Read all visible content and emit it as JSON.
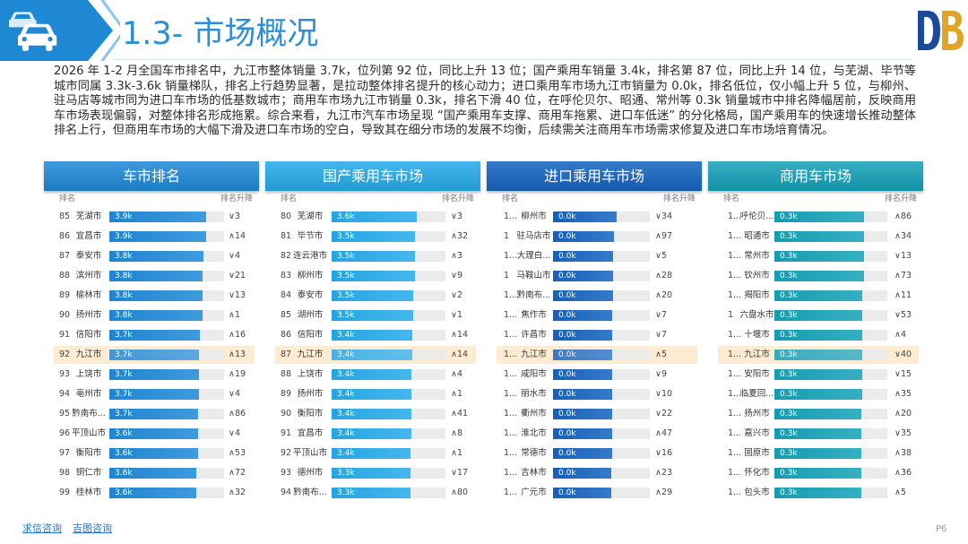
{
  "header": {
    "title": "1.3- 市场概况"
  },
  "summary": "2026 年 1-2 月全国车市排名中，九江市整体销量 3.7k，位列第 92 位，同比上升 13 位；国产乘用车销量 3.4k，排名第 87 位，同比上升 14 位，与芜湖、毕节等城市同属 3.3k-3.6k 销量梯队，排名上行趋势显著，是拉动整体排名提升的核心动力；进口乘用车市场九江市销量为 0.0k，排名低位，仅小幅上升 5 位，与柳州、驻马店等城市同为进口车市场的低基数城市；商用车市场九江市销量 0.3k，排名下滑 40 位，在呼伦贝尔、昭通、常州等 0.3k 销量城市中排名降幅居前，反映商用车市场表现偏弱，对整体排名形成拖累。综合来看，九江市汽车市场呈现 “国产乘用车支撑、商用车拖累、进口车低迷” 的分化格局，国产乘用车的快速增长推动整体排名上行，但商用车市场的大幅下滑及进口车市场的空白，导致其在细分市场的发展不均衡，后续需关注商用车市场需求修复及进口车市场培育情况。",
  "panels": [
    {
      "title": "车市排名",
      "col_rank": "排名",
      "col_change": "排名升降",
      "color": "#1f8ad8",
      "rows": [
        {
          "rank": "85",
          "city": "芜湖市",
          "value": "3.9k",
          "bar": 0.84,
          "change": "∨3"
        },
        {
          "rank": "86",
          "city": "宜昌市",
          "value": "3.9k",
          "bar": 0.84,
          "change": "∧14"
        },
        {
          "rank": "87",
          "city": "泰安市",
          "value": "3.8k",
          "bar": 0.82,
          "change": "∨4"
        },
        {
          "rank": "88",
          "city": "滨州市",
          "value": "3.8k",
          "bar": 0.81,
          "change": "∨21"
        },
        {
          "rank": "89",
          "city": "榆林市",
          "value": "3.8k",
          "bar": 0.81,
          "change": "∨13"
        },
        {
          "rank": "90",
          "city": "扬州市",
          "value": "3.8k",
          "bar": 0.81,
          "change": "∧1"
        },
        {
          "rank": "91",
          "city": "信阳市",
          "value": "3.7k",
          "bar": 0.79,
          "change": "∧16"
        },
        {
          "rank": "92",
          "city": "九江市",
          "value": "3.7k",
          "bar": 0.78,
          "change": "∧13",
          "highlight": true
        },
        {
          "rank": "93",
          "city": "上饶市",
          "value": "3.7k",
          "bar": 0.78,
          "change": "∧19"
        },
        {
          "rank": "94",
          "city": "亳州市",
          "value": "3.7k",
          "bar": 0.78,
          "change": "∨4"
        },
        {
          "rank": "95",
          "city": "黔南布...",
          "value": "3.7k",
          "bar": 0.77,
          "change": "∧86"
        },
        {
          "rank": "96",
          "city": "平顶山市",
          "value": "3.6k",
          "bar": 0.77,
          "change": "∨4"
        },
        {
          "rank": "97",
          "city": "衡阳市",
          "value": "3.6k",
          "bar": 0.77,
          "change": "∧53"
        },
        {
          "rank": "98",
          "city": "铜仁市",
          "value": "3.6k",
          "bar": 0.76,
          "change": "∧72"
        },
        {
          "rank": "99",
          "city": "桂林市",
          "value": "3.6k",
          "bar": 0.76,
          "change": "∧32"
        }
      ]
    },
    {
      "title": "国产乘用车市场",
      "col_rank": "排名",
      "col_change": "排名升降",
      "color": "#26abeb",
      "rows": [
        {
          "rank": "80",
          "city": "芜湖市",
          "value": "3.6k",
          "bar": 0.75,
          "change": "∨3"
        },
        {
          "rank": "81",
          "city": "毕节市",
          "value": "3.5k",
          "bar": 0.73,
          "change": "∧32"
        },
        {
          "rank": "82",
          "city": "连云港市",
          "value": "3.5k",
          "bar": 0.73,
          "change": "∧3"
        },
        {
          "rank": "83",
          "city": "柳州市",
          "value": "3.5k",
          "bar": 0.73,
          "change": "∨9"
        },
        {
          "rank": "84",
          "city": "泰安市",
          "value": "3.5k",
          "bar": 0.72,
          "change": "∨2"
        },
        {
          "rank": "85",
          "city": "湖州市",
          "value": "3.5k",
          "bar": 0.72,
          "change": "∨1"
        },
        {
          "rank": "86",
          "city": "信阳市",
          "value": "3.4k",
          "bar": 0.71,
          "change": "∧14"
        },
        {
          "rank": "87",
          "city": "九江市",
          "value": "3.4k",
          "bar": 0.71,
          "change": "∧14",
          "highlight": true
        },
        {
          "rank": "88",
          "city": "上饶市",
          "value": "3.4k",
          "bar": 0.7,
          "change": "∧4"
        },
        {
          "rank": "89",
          "city": "扬州市",
          "value": "3.4k",
          "bar": 0.7,
          "change": "∧1"
        },
        {
          "rank": "90",
          "city": "衡阳市",
          "value": "3.4k",
          "bar": 0.7,
          "change": "∧41"
        },
        {
          "rank": "91",
          "city": "宜昌市",
          "value": "3.4k",
          "bar": 0.7,
          "change": "∧8"
        },
        {
          "rank": "92",
          "city": "平顶山市",
          "value": "3.4k",
          "bar": 0.69,
          "change": "∧1"
        },
        {
          "rank": "93",
          "city": "德州市",
          "value": "3.3k",
          "bar": 0.69,
          "change": "∨17"
        },
        {
          "rank": "94",
          "city": "黔南布...",
          "value": "3.3k",
          "bar": 0.69,
          "change": "∧80"
        }
      ]
    },
    {
      "title": "进口乘用车市场",
      "col_rank": "排名",
      "col_change": "排名升降",
      "color": "#1564c1",
      "rows": [
        {
          "rank": "1...",
          "city": "柳州市",
          "value": "0.0k",
          "bar": 0.66,
          "change": "∨34"
        },
        {
          "rank": "1",
          "city": "驻马店市",
          "value": "0.0k",
          "bar": 0.63,
          "change": "∧97"
        },
        {
          "rank": "1...",
          "city": "大理白...",
          "value": "0.0k",
          "bar": 0.62,
          "change": "∨5"
        },
        {
          "rank": "1",
          "city": "马鞍山市",
          "value": "0.0k",
          "bar": 0.62,
          "change": "∧28"
        },
        {
          "rank": "1...",
          "city": "黔南布...",
          "value": "0.0k",
          "bar": 0.62,
          "change": "∧20"
        },
        {
          "rank": "1...",
          "city": "焦作市",
          "value": "0.0k",
          "bar": 0.61,
          "change": "∨7"
        },
        {
          "rank": "1...",
          "city": "许昌市",
          "value": "0.0k",
          "bar": 0.61,
          "change": "∨7"
        },
        {
          "rank": "1...",
          "city": "九江市",
          "value": "0.0k",
          "bar": 0.61,
          "change": "∧5",
          "highlight": true
        },
        {
          "rank": "1...",
          "city": "咸阳市",
          "value": "0.0k",
          "bar": 0.61,
          "change": "∨9"
        },
        {
          "rank": "1...",
          "city": "丽水市",
          "value": "0.0k",
          "bar": 0.61,
          "change": "∨10"
        },
        {
          "rank": "1...",
          "city": "衢州市",
          "value": "0.0k",
          "bar": 0.61,
          "change": "∨22"
        },
        {
          "rank": "1...",
          "city": "淮北市",
          "value": "0.0k",
          "bar": 0.61,
          "change": "∧47"
        },
        {
          "rank": "1...",
          "city": "常德市",
          "value": "0.0k",
          "bar": 0.61,
          "change": "∨16"
        },
        {
          "rank": "1...",
          "city": "吉林市",
          "value": "0.0k",
          "bar": 0.6,
          "change": "∧23"
        },
        {
          "rank": "1...",
          "city": "广元市",
          "value": "0.0k",
          "bar": 0.6,
          "change": "∧29"
        }
      ]
    },
    {
      "title": "商用车市场",
      "col_rank": "排名",
      "col_change": "排名升降",
      "color": "#16a2b8",
      "rows": [
        {
          "rank": "1...",
          "city": "呼伦贝...",
          "value": "0.3k",
          "bar": 0.79,
          "change": "∧86"
        },
        {
          "rank": "1...",
          "city": "昭通市",
          "value": "0.3k",
          "bar": 0.79,
          "change": "∧34"
        },
        {
          "rank": "1...",
          "city": "常州市",
          "value": "0.3k",
          "bar": 0.79,
          "change": "∨13"
        },
        {
          "rank": "1...",
          "city": "钦州市",
          "value": "0.3k",
          "bar": 0.79,
          "change": "∧73"
        },
        {
          "rank": "1...",
          "city": "揭阳市",
          "value": "0.3k",
          "bar": 0.78,
          "change": "∧11"
        },
        {
          "rank": "1",
          "city": "六盘水市",
          "value": "0.3k",
          "bar": 0.78,
          "change": "∨53"
        },
        {
          "rank": "1...",
          "city": "十堰市",
          "value": "0.3k",
          "bar": 0.78,
          "change": "∧4"
        },
        {
          "rank": "1...",
          "city": "九江市",
          "value": "0.3k",
          "bar": 0.78,
          "change": "∨40",
          "highlight": true
        },
        {
          "rank": "1...",
          "city": "安阳市",
          "value": "0.3k",
          "bar": 0.78,
          "change": "∨15"
        },
        {
          "rank": "1...",
          "city": "临夏回...",
          "value": "0.3k",
          "bar": 0.78,
          "change": "∧35"
        },
        {
          "rank": "1...",
          "city": "扬州市",
          "value": "0.3k",
          "bar": 0.77,
          "change": "∧20"
        },
        {
          "rank": "1...",
          "city": "嘉兴市",
          "value": "0.3k",
          "bar": 0.77,
          "change": "∨35"
        },
        {
          "rank": "1...",
          "city": "固原市",
          "value": "0.3k",
          "bar": 0.77,
          "change": "∧38"
        },
        {
          "rank": "1...",
          "city": "怀化市",
          "value": "0.3k",
          "bar": 0.77,
          "change": "∧36"
        },
        {
          "rank": "1...",
          "city": "包头市",
          "value": "0.3k",
          "bar": 0.77,
          "change": "∧5"
        }
      ]
    }
  ],
  "footer": {
    "link_1": "求信咨询",
    "link_2": "吉图咨询",
    "page": "P6"
  }
}
